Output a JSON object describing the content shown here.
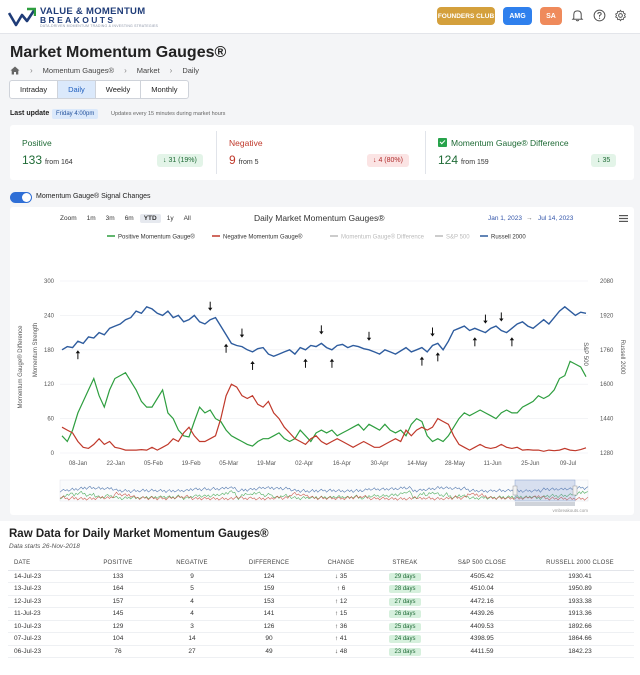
{
  "brand": {
    "line1": "VALUE & MOMENTUM",
    "line2": "BREAKOUTS",
    "tagline": "DATA-DRIVEN MOMENTUM TRADING & INVESTING STRATEGIES"
  },
  "header": {
    "founders_label": "FOUNDERS CLUB",
    "amg_label": "AMG",
    "avatar_label": "SA"
  },
  "page": {
    "title": "Market Momentum Gauges®",
    "breadcrumb": [
      "Momentum Gauges®",
      "Market",
      "Daily"
    ]
  },
  "tabs": [
    {
      "label": "Intraday",
      "active": false
    },
    {
      "label": "Daily",
      "active": true
    },
    {
      "label": "Weekly",
      "active": false
    },
    {
      "label": "Monthly",
      "active": false
    }
  ],
  "update": {
    "label": "Last update",
    "value": "Friday 4:00pm",
    "note": "Updates every 15 minutes during market hours"
  },
  "cards": {
    "positive": {
      "label": "Positive",
      "value": "133",
      "from": "from 164",
      "change": "31 (19%)",
      "color": "#1f6b36"
    },
    "negative": {
      "label": "Negative",
      "value": "9",
      "from": "from 5",
      "change": "4 (80%)",
      "color": "#c0392b"
    },
    "difference": {
      "label": "Momentum Gauge® Difference",
      "value": "124",
      "from": "from 159",
      "change": "35"
    }
  },
  "toggle": {
    "label": "Momentum Gauge® Signal Changes",
    "on": true
  },
  "chart": {
    "zoom_label": "Zoom",
    "zoom_options": [
      "1m",
      "3m",
      "6m",
      "YTD",
      "1y",
      "All"
    ],
    "zoom_active": "YTD",
    "range_from": "Jan 1, 2023",
    "range_arrow": "→",
    "range_to": "Jul 14, 2023",
    "credit": "vmbreakouts.com"
  },
  "chart_data": {
    "type": "line",
    "title": "Daily Market Momentum Gauges®",
    "legend": [
      {
        "name": "Positive Momentum Gauge®",
        "color": "#2e9e3f",
        "visible": true
      },
      {
        "name": "Negative Momentum Gauge®",
        "color": "#c0392b",
        "visible": true
      },
      {
        "name": "Momentum Gauge® Difference",
        "color": "#bbbbbb",
        "visible": false
      },
      {
        "name": "S&P 500",
        "color": "#bbbbbb",
        "visible": false
      },
      {
        "name": "Russell 2000",
        "color": "#2e5c9e",
        "visible": true
      }
    ],
    "legend_position": "top",
    "x_ticks": [
      "08-Jan",
      "22-Jan",
      "05-Feb",
      "19-Feb",
      "05-Mar",
      "19-Mar",
      "02-Apr",
      "16-Apr",
      "30-Apr",
      "14-May",
      "28-May",
      "11-Jun",
      "25-Jun",
      "09-Jul"
    ],
    "y_left_ticks": [
      0,
      60,
      120,
      180,
      240,
      300
    ],
    "y_left_range": [
      0,
      300
    ],
    "y_left_label_1": "Momentum Gauge® Difference",
    "y_left_label_2": "Momentum Strength",
    "y_right_ticks": [
      1280,
      1440,
      1600,
      1760,
      1920,
      2080
    ],
    "y_right_range": [
      1280,
      2080
    ],
    "y_right_label_1": "Russell 2000",
    "y_right_label_2": "S&P 500",
    "series": [
      {
        "name": "Russell 2000",
        "axis": "right",
        "values": [
          1760,
          1775,
          1770,
          1800,
          1790,
          1820,
          1815,
          1840,
          1830,
          1860,
          1870,
          1880,
          1900,
          1910,
          1940,
          1930,
          1960,
          1950,
          1930,
          1920,
          1940,
          1910,
          1920,
          1890,
          1900,
          1920,
          1890,
          1880,
          1900,
          1910,
          1870,
          1830,
          1790,
          1780,
          1775,
          1760,
          1750,
          1765,
          1770,
          1740,
          1730,
          1740,
          1750,
          1760,
          1740,
          1770,
          1760,
          1780,
          1775,
          1790,
          1770,
          1760,
          1780,
          1785,
          1770,
          1780,
          1775,
          1765,
          1760,
          1750,
          1740,
          1760,
          1750,
          1740,
          1755,
          1770,
          1750,
          1760,
          1770,
          1750,
          1780,
          1790,
          1760,
          1800,
          1850,
          1860,
          1870,
          1850,
          1860,
          1850,
          1840,
          1860,
          1870,
          1850,
          1840,
          1860,
          1880,
          1890,
          1870,
          1860,
          1880,
          1900,
          1880,
          1910,
          1940,
          1960,
          1940,
          1920,
          1935,
          1930
        ]
      },
      {
        "name": "Positive Momentum Gauge®",
        "axis": "left",
        "values": [
          30,
          20,
          40,
          70,
          90,
          110,
          130,
          100,
          80,
          110,
          130,
          135,
          140,
          125,
          110,
          90,
          80,
          80,
          95,
          110,
          70,
          60,
          40,
          30,
          28,
          55,
          80,
          70,
          75,
          60,
          55,
          40,
          30,
          25,
          20,
          15,
          12,
          20,
          25,
          25,
          30,
          35,
          25,
          20,
          25,
          40,
          30,
          20,
          35,
          40,
          35,
          40,
          30,
          35,
          40,
          45,
          50,
          40,
          50,
          45,
          40,
          50,
          40,
          35,
          40,
          30,
          50,
          60,
          55,
          30,
          20,
          25,
          20,
          30,
          45,
          60,
          70,
          65,
          70,
          75,
          70,
          65,
          60,
          70,
          75,
          70,
          70,
          80,
          85,
          90,
          100,
          95,
          100,
          110,
          130,
          135,
          160,
          155,
          150,
          133
        ]
      },
      {
        "name": "Negative Momentum Gauge®",
        "axis": "left",
        "values": [
          45,
          40,
          35,
          20,
          10,
          8,
          15,
          25,
          15,
          20,
          10,
          8,
          5,
          5,
          5,
          6,
          5,
          10,
          5,
          10,
          15,
          25,
          20,
          35,
          45,
          30,
          20,
          20,
          25,
          30,
          60,
          100,
          120,
          115,
          100,
          95,
          100,
          85,
          80,
          90,
          70,
          60,
          45,
          35,
          25,
          20,
          15,
          25,
          30,
          20,
          15,
          20,
          25,
          20,
          15,
          10,
          15,
          20,
          15,
          10,
          10,
          15,
          20,
          25,
          20,
          40,
          30,
          40,
          45,
          40,
          45,
          60,
          55,
          50,
          30,
          15,
          10,
          5,
          10,
          15,
          10,
          8,
          10,
          15,
          10,
          8,
          10,
          5,
          6,
          5,
          5,
          3,
          5,
          4,
          5,
          8,
          5,
          4,
          6,
          9
        ]
      }
    ]
  },
  "table": {
    "title": "Raw Data for Daily Market Momentum Gauges®",
    "subtitle": "Data starts 26-Nov-2018",
    "headers": [
      "DATE",
      "POSITIVE",
      "NEGATIVE",
      "DIFFERENCE",
      "CHANGE",
      "STREAK",
      "S&P 500 CLOSE",
      "RUSSELL 2000 CLOSE"
    ],
    "rows": [
      {
        "date": "14-Jul-23",
        "positive": "133",
        "negative": "9",
        "difference": "124",
        "dir": "down",
        "change": "35",
        "streak": "29 days",
        "sp500": "4505.42",
        "russell": "1930.41"
      },
      {
        "date": "13-Jul-23",
        "positive": "164",
        "negative": "5",
        "difference": "159",
        "dir": "up",
        "change": "6",
        "streak": "28 days",
        "sp500": "4510.04",
        "russell": "1950.89"
      },
      {
        "date": "12-Jul-23",
        "positive": "157",
        "negative": "4",
        "difference": "153",
        "dir": "up",
        "change": "12",
        "streak": "27 days",
        "sp500": "4472.16",
        "russell": "1933.38"
      },
      {
        "date": "11-Jul-23",
        "positive": "145",
        "negative": "4",
        "difference": "141",
        "dir": "up",
        "change": "15",
        "streak": "26 days",
        "sp500": "4439.26",
        "russell": "1913.36"
      },
      {
        "date": "10-Jul-23",
        "positive": "129",
        "negative": "3",
        "difference": "126",
        "dir": "up",
        "change": "36",
        "streak": "25 days",
        "sp500": "4409.53",
        "russell": "1892.66"
      },
      {
        "date": "07-Jul-23",
        "positive": "104",
        "negative": "14",
        "difference": "90",
        "dir": "up",
        "change": "41",
        "streak": "24 days",
        "sp500": "4398.95",
        "russell": "1864.66"
      },
      {
        "date": "06-Jul-23",
        "positive": "76",
        "negative": "27",
        "difference": "49",
        "dir": "down",
        "change": "48",
        "streak": "23 days",
        "sp500": "4411.59",
        "russell": "1842.23"
      }
    ]
  }
}
